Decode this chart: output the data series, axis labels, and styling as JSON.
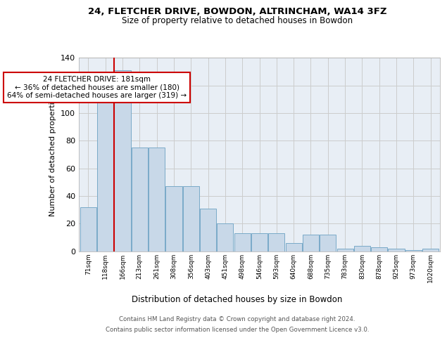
{
  "title_line1": "24, FLETCHER DRIVE, BOWDON, ALTRINCHAM, WA14 3FZ",
  "title_line2": "Size of property relative to detached houses in Bowdon",
  "xlabel": "Distribution of detached houses by size in Bowdon",
  "ylabel": "Number of detached properties",
  "bar_labels": [
    "71sqm",
    "118sqm",
    "166sqm",
    "213sqm",
    "261sqm",
    "308sqm",
    "356sqm",
    "403sqm",
    "451sqm",
    "498sqm",
    "546sqm",
    "593sqm",
    "640sqm",
    "688sqm",
    "735sqm",
    "783sqm",
    "830sqm",
    "878sqm",
    "925sqm",
    "973sqm",
    "1020sqm"
  ],
  "bar_heights": [
    32,
    114,
    131,
    75,
    75,
    47,
    47,
    31,
    20,
    13,
    13,
    13,
    6,
    12,
    12,
    2,
    4,
    3,
    2,
    1,
    2
  ],
  "bar_color": "#c8d8e8",
  "bar_edge_color": "#7aaac8",
  "vline_color": "#cc0000",
  "annotation_text": "24 FLETCHER DRIVE: 181sqm\n← 36% of detached houses are smaller (180)\n64% of semi-detached houses are larger (319) →",
  "annotation_box_color": "white",
  "annotation_box_edge_color": "#cc0000",
  "ylim": [
    0,
    140
  ],
  "yticks": [
    0,
    20,
    40,
    60,
    80,
    100,
    120,
    140
  ],
  "grid_color": "#cccccc",
  "bg_color": "#e8eef5",
  "footer_line1": "Contains HM Land Registry data © Crown copyright and database right 2024.",
  "footer_line2": "Contains public sector information licensed under the Open Government Licence v3.0."
}
